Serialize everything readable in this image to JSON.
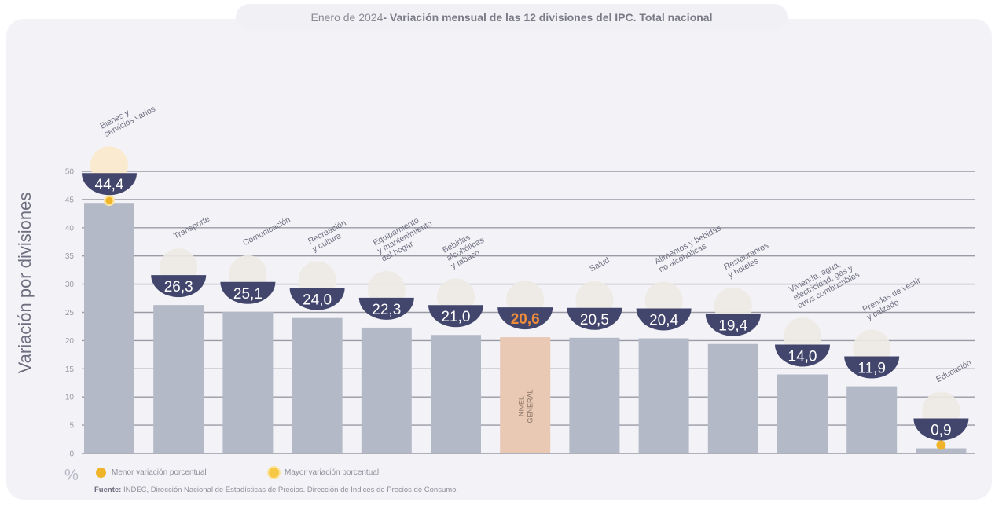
{
  "title": {
    "lead": "Enero de 2024",
    "rest": " - Variación mensual de las 12 divisiones del IPC. Total nacional"
  },
  "y_axis_title": "Variación por divisiones",
  "unit_symbol": "%",
  "legend": {
    "min_label": "Menor variación porcentual",
    "max_label": "Mayor variación porcentual"
  },
  "source": {
    "label": "Fuente:",
    "text": " INDEC, Dirección Nacional de Estadísticas de Precios. Dirección de Índices de Precios de Consumo."
  },
  "colors": {
    "bar": "#b3b9c6",
    "highlight_bar": "#e9c8b4",
    "badge": "#43466c",
    "badge_text": "#ffffff",
    "highlight_text": "#ef8d3a",
    "marker": "#f0b429",
    "grid": "#9a9aa5"
  },
  "chart_data": {
    "type": "bar",
    "ylim": [
      0,
      50
    ],
    "y_ticks": [
      "0",
      "5",
      "10",
      "15",
      "20",
      "25",
      "30",
      "35",
      "40",
      "45",
      "50"
    ],
    "categories": [
      [
        "Bienes y",
        "servicios varios"
      ],
      [
        "Transporte"
      ],
      [
        "Comunicación"
      ],
      [
        "Recreación",
        "y cultura"
      ],
      [
        "Equipamiento",
        "y mantenimiento",
        "del hogar"
      ],
      [
        "Bebidas",
        "alcohólicas",
        "y tabaco"
      ],
      [
        "NIVEL",
        "GENERAL"
      ],
      [
        "Salud"
      ],
      [
        "Alimentos y bebidas",
        "no alcohólicas"
      ],
      [
        "Restaurantes",
        "y hoteles"
      ],
      [
        "Vivienda, agua,",
        "electricidad, gas y",
        "otros combustibles"
      ],
      [
        "Prendas de vestir",
        "y calzado"
      ],
      [
        "Educación"
      ]
    ],
    "values": [
      44.4,
      26.3,
      25.1,
      24.0,
      22.3,
      21.0,
      20.6,
      20.5,
      20.4,
      19.4,
      14.0,
      11.9,
      0.9
    ],
    "value_labels": [
      "44,4",
      "26,3",
      "25,1",
      "24,0",
      "22,3",
      "21,0",
      "20,6",
      "20,5",
      "20,4",
      "19,4",
      "14,0",
      "11,9",
      "0,9"
    ],
    "highlight_index": 6,
    "max_index": 0,
    "min_index": 12,
    "grid": true,
    "legend_position": "bottom-left"
  }
}
